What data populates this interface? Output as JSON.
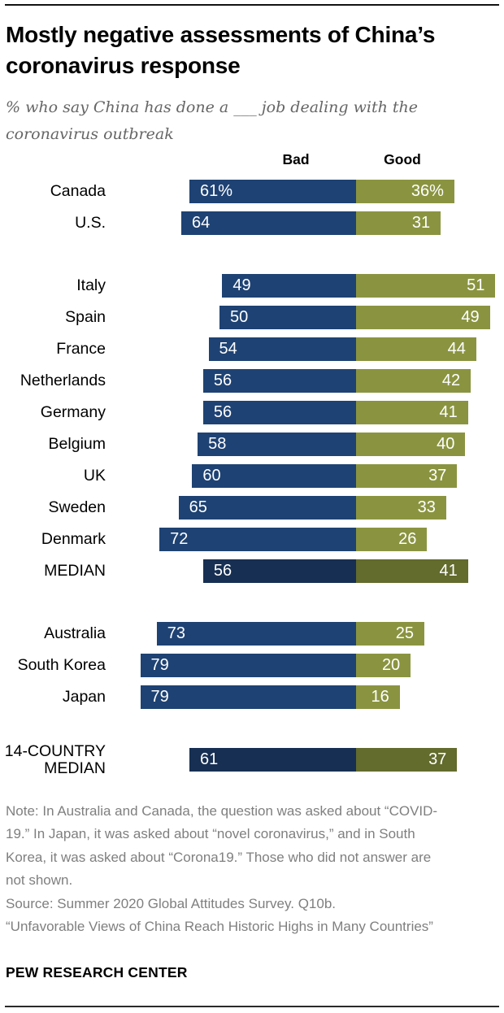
{
  "header": {
    "title_lines": [
      "Mostly negative assessments of China’s",
      "coronavirus response"
    ],
    "subtitle_lines": [
      "% who say China has done a ___ job dealing with the",
      "coronavirus outbreak"
    ]
  },
  "chart_data": {
    "type": "bar",
    "variant": "diverging horizontal",
    "title": "Mostly negative assessments of China’s coronavirus response",
    "subtitle": "% who say China has done a ___ job dealing with the coronavirus outbreak",
    "column_headers": {
      "bad": "Bad",
      "good": "Good"
    },
    "value_axis": "percent",
    "colors": {
      "bad": "#1e4273",
      "good": "#8a9440",
      "bad_median": "#172f52",
      "good_median": "#636b2d",
      "value_text": "#ffffff"
    },
    "groups": [
      {
        "rows": [
          {
            "label": "Canada",
            "bad": 61,
            "good": 36,
            "bad_label": "61%",
            "good_label": "36%",
            "median": false
          },
          {
            "label": "U.S.",
            "bad": 64,
            "good": 31,
            "bad_label": "64",
            "good_label": "31",
            "median": false
          }
        ]
      },
      {
        "rows": [
          {
            "label": "Italy",
            "bad": 49,
            "good": 51,
            "bad_label": "49",
            "good_label": "51",
            "median": false
          },
          {
            "label": "Spain",
            "bad": 50,
            "good": 49,
            "bad_label": "50",
            "good_label": "49",
            "median": false
          },
          {
            "label": "France",
            "bad": 54,
            "good": 44,
            "bad_label": "54",
            "good_label": "44",
            "median": false
          },
          {
            "label": "Netherlands",
            "bad": 56,
            "good": 42,
            "bad_label": "56",
            "good_label": "42",
            "median": false
          },
          {
            "label": "Germany",
            "bad": 56,
            "good": 41,
            "bad_label": "56",
            "good_label": "41",
            "median": false
          },
          {
            "label": "Belgium",
            "bad": 58,
            "good": 40,
            "bad_label": "58",
            "good_label": "40",
            "median": false
          },
          {
            "label": "UK",
            "bad": 60,
            "good": 37,
            "bad_label": "60",
            "good_label": "37",
            "median": false
          },
          {
            "label": "Sweden",
            "bad": 65,
            "good": 33,
            "bad_label": "65",
            "good_label": "33",
            "median": false
          },
          {
            "label": "Denmark",
            "bad": 72,
            "good": 26,
            "bad_label": "72",
            "good_label": "26",
            "median": false
          },
          {
            "label": "MEDIAN",
            "bad": 56,
            "good": 41,
            "bad_label": "56",
            "good_label": "41",
            "median": true
          }
        ]
      },
      {
        "rows": [
          {
            "label": "Australia",
            "bad": 73,
            "good": 25,
            "bad_label": "73",
            "good_label": "25",
            "median": false
          },
          {
            "label": "South Korea",
            "bad": 79,
            "good": 20,
            "bad_label": "79",
            "good_label": "20",
            "median": false
          },
          {
            "label": "Japan",
            "bad": 79,
            "good": 16,
            "bad_label": "79",
            "good_label": "16",
            "median": false
          }
        ]
      },
      {
        "rows": [
          {
            "label": "14-COUNTRY MEDIAN",
            "bad": 61,
            "good": 37,
            "bad_label": "61",
            "good_label": "37",
            "median": true
          }
        ]
      }
    ]
  },
  "notes": {
    "note": "Note: In Australia and Canada, the question was asked about “COVID-19.” In Japan, it was asked about “novel coronavirus,” and in South Korea, it was asked about “Corona19.” Those who did not answer are not shown.",
    "source": "Source: Summer 2020 Global Attitudes Survey. Q10b.",
    "report": "“Unfavorable Views of China Reach Historic Highs in Many Countries”"
  },
  "footer": {
    "brand": "PEW RESEARCH CENTER"
  }
}
